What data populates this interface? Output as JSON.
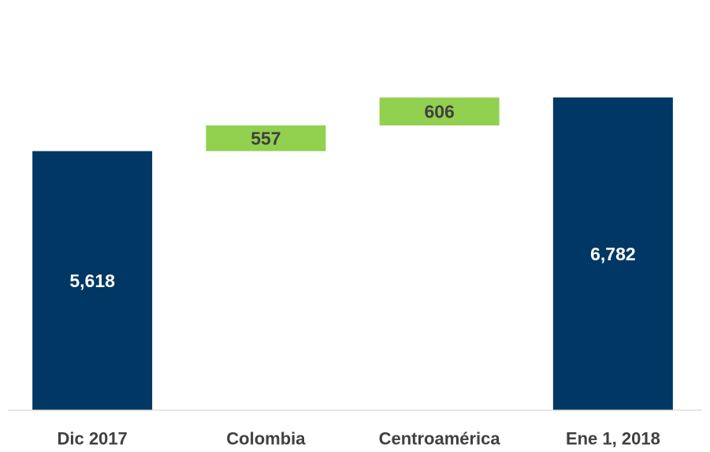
{
  "chart_data": {
    "type": "bar",
    "subtype": "waterfall",
    "categories": [
      "Dic 2017",
      "Colombia",
      "Centroamérica",
      "Ene 1, 2018"
    ],
    "values": [
      5618,
      557,
      606,
      6782
    ],
    "value_labels": [
      "5,618",
      "557",
      "606",
      "6,782"
    ],
    "bar_kind": [
      "total",
      "increase",
      "increase",
      "total"
    ],
    "bar_base": [
      0,
      5618,
      6175,
      0
    ],
    "ylim": [
      0,
      7800
    ],
    "grid": false,
    "legend": "none",
    "colors": {
      "total": "#003764",
      "increase": "#92D050",
      "total_label": "#ffffff",
      "increase_label": "#404040",
      "category_label": "#404040",
      "axis_line": "#d9d9d9"
    }
  }
}
